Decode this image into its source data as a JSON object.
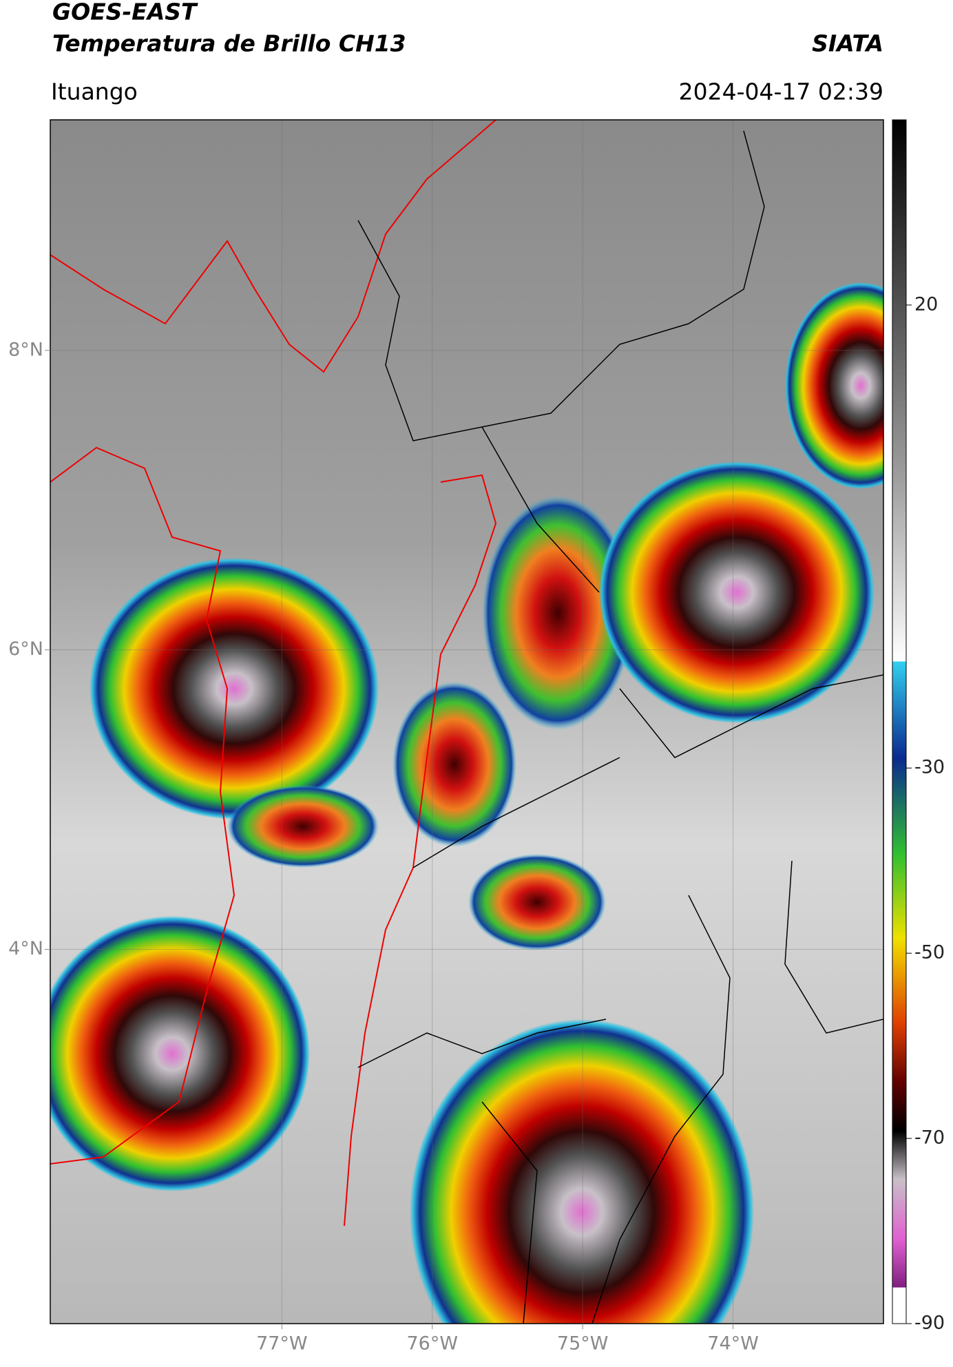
{
  "chart_data": {
    "type": "map",
    "title": "GOES-EAST",
    "subtitle": "Temperatura de Brillo CH13",
    "source": "SIATA",
    "location": "Ituango",
    "datetime": "2024-04-17 02:39",
    "xlim": [
      -78.54,
      -73.0
    ],
    "ylim": [
      1.5,
      9.54
    ],
    "xticks": [
      {
        "value": -77,
        "label": "77°W"
      },
      {
        "value": -76,
        "label": "76°W"
      },
      {
        "value": -75,
        "label": "75°W"
      },
      {
        "value": -74,
        "label": "74°W"
      }
    ],
    "yticks": [
      {
        "value": 8,
        "label": "8°N"
      },
      {
        "value": 6,
        "label": "6°N"
      },
      {
        "value": 4,
        "label": "4°N"
      }
    ],
    "grid": true,
    "colorbar": {
      "lim": [
        -90,
        40
      ],
      "ticks": [
        20,
        -30,
        -50,
        -70,
        -90
      ]
    }
  }
}
